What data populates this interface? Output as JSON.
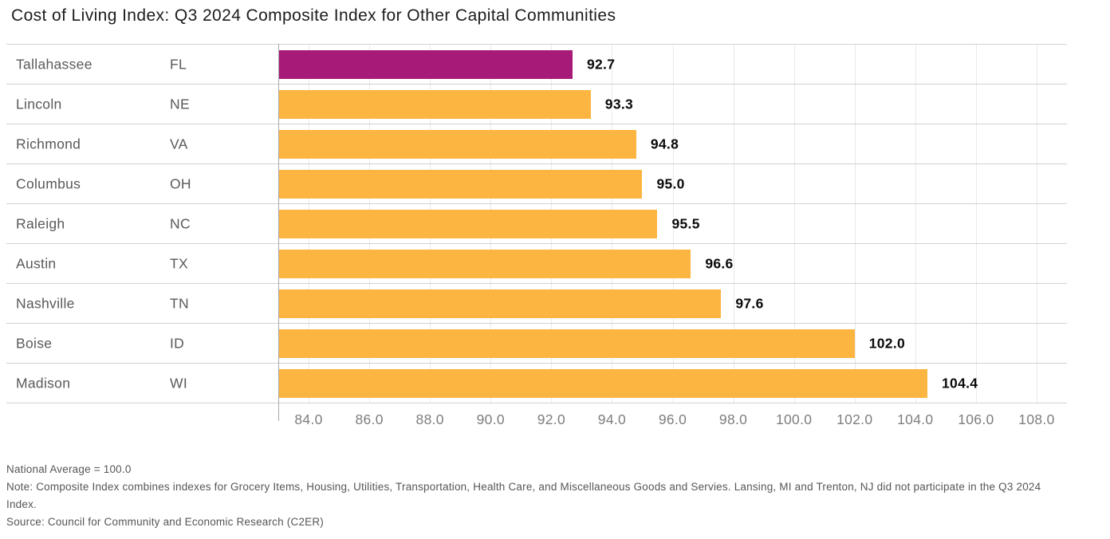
{
  "title": "Cost of Living Index: Q3 2024 Composite Index for Other Capital Communities",
  "chart_data": {
    "type": "bar",
    "orientation": "horizontal",
    "title": "Cost of Living Index: Q3 2024 Composite Index for Other Capital Communities",
    "rows": [
      {
        "city": "Tallahassee",
        "state": "FL",
        "value": 92.7,
        "highlight": true
      },
      {
        "city": "Lincoln",
        "state": "NE",
        "value": 93.3,
        "highlight": false
      },
      {
        "city": "Richmond",
        "state": "VA",
        "value": 94.8,
        "highlight": false
      },
      {
        "city": "Columbus",
        "state": "OH",
        "value": 95.0,
        "highlight": false
      },
      {
        "city": "Raleigh",
        "state": "NC",
        "value": 95.5,
        "highlight": false
      },
      {
        "city": "Austin",
        "state": "TX",
        "value": 96.6,
        "highlight": false
      },
      {
        "city": "Nashville",
        "state": "TN",
        "value": 97.6,
        "highlight": false
      },
      {
        "city": "Boise",
        "state": "ID",
        "value": 102.0,
        "highlight": false
      },
      {
        "city": "Madison",
        "state": "WI",
        "value": 104.4,
        "highlight": false
      }
    ],
    "series": [
      {
        "name": "Composite Index",
        "values": [
          92.7,
          93.3,
          94.8,
          95.0,
          95.5,
          96.6,
          97.6,
          102.0,
          104.4
        ]
      }
    ],
    "x_ticks": [
      84.0,
      86.0,
      88.0,
      90.0,
      92.0,
      94.0,
      96.0,
      98.0,
      100.0,
      102.0,
      104.0,
      106.0,
      108.0
    ],
    "x_tick_labels": [
      "84.0",
      "86.0",
      "88.0",
      "90.0",
      "92.0",
      "94.0",
      "96.0",
      "98.0",
      "100.0",
      "102.0",
      "104.0",
      "106.0",
      "108.0"
    ],
    "axis_range": [
      83.0,
      109.0
    ],
    "grid": true,
    "legend": "none",
    "colors": {
      "bar": "#FCB540",
      "highlight_bar": "#A81A78",
      "grid_line": "#e9e9e9",
      "row_line": "#d2d2d2",
      "axis_line": "#a9a9a9",
      "label_text": "#595959",
      "tick_text": "#7d7d7d",
      "value_text": "#0a0a0a"
    }
  },
  "footer": {
    "national_average": "National Average = 100.0",
    "note": "Note: Composite Index combines indexes for Grocery Items, Housing, Utilities, Transportation, Health Care, and Miscellaneous Goods and Servies. Lansing, MI and Trenton, NJ did not participate in the Q3 2024 Index.",
    "source": "Source: Council for Community and Economic Research (C2ER)"
  }
}
